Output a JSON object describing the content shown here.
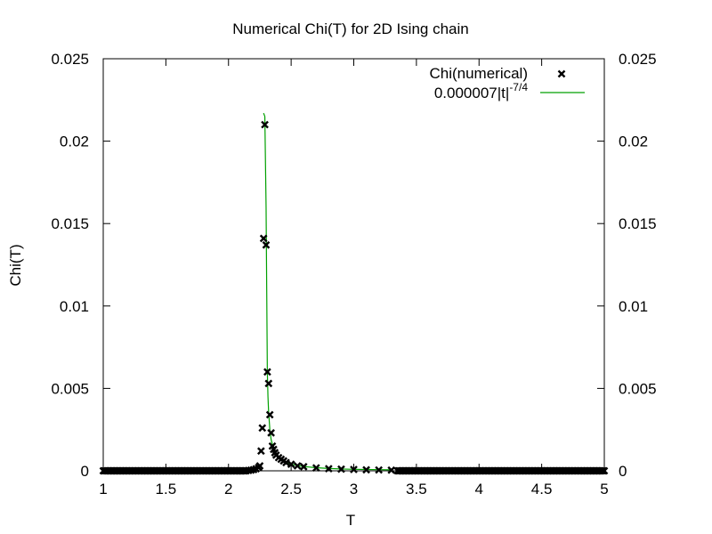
{
  "chart_data": {
    "type": "scatter",
    "title": "Numerical Chi(T) for 2D Ising chain",
    "xlabel": "T",
    "ylabel": "Chi(T)",
    "xlim": [
      1,
      5
    ],
    "ylim": [
      0,
      0.025
    ],
    "x_ticks": [
      "1",
      "1.5",
      "2",
      "2.5",
      "3",
      "3.5",
      "4",
      "4.5",
      "5"
    ],
    "y_ticks": [
      "0",
      "0.005",
      "0.01",
      "0.015",
      "0.02",
      "0.025"
    ],
    "y2_ticks": [
      "0",
      "0.005",
      "0.01",
      "0.015",
      "0.02",
      "0.025"
    ],
    "legend_position": "top-right",
    "grid": false,
    "series": [
      {
        "name": "Chi(numerical)",
        "kind": "points",
        "marker": "x",
        "color": "#000000",
        "x": [
          2.16,
          2.18,
          2.2,
          2.22,
          2.24,
          2.25,
          2.26,
          2.27,
          2.28,
          2.29,
          2.3,
          2.31,
          2.32,
          2.33,
          2.34,
          2.35,
          2.36,
          2.37,
          2.38,
          2.4,
          2.42,
          2.44,
          2.46,
          2.5,
          2.55,
          2.6,
          2.7,
          2.8,
          2.9,
          3.0,
          3.1,
          3.2,
          3.3
        ],
        "y": [
          2e-05,
          4e-05,
          7e-05,
          0.00012,
          0.0002,
          0.0003,
          0.0012,
          0.0026,
          0.0141,
          0.021,
          0.0137,
          0.006,
          0.0053,
          0.0034,
          0.0023,
          0.0015,
          0.0013,
          0.0011,
          0.00095,
          0.0008,
          0.0007,
          0.0006,
          0.0005,
          0.0004,
          0.0003,
          0.00025,
          0.00018,
          0.00013,
          0.0001,
          8e-05,
          6e-05,
          5e-05,
          4e-05
        ]
      },
      {
        "name": "0.000007|t|",
        "name_superscript": "-7/4",
        "kind": "line",
        "color": "#00a000",
        "x": [
          2.28,
          2.29,
          2.3,
          2.31,
          2.315,
          2.32,
          2.33,
          2.34,
          2.35,
          2.36,
          2.38,
          2.4,
          2.43,
          2.46,
          2.5,
          2.55,
          2.6,
          2.7,
          2.8,
          2.9,
          3.0,
          3.1,
          3.2,
          3.3
        ],
        "y": [
          0.0217,
          0.0215,
          0.016,
          0.006,
          0.0045,
          0.0036,
          0.0025,
          0.0019,
          0.0016,
          0.0013,
          0.001,
          0.0008,
          0.0006,
          0.0005,
          0.0004,
          0.00032,
          0.00026,
          0.00019,
          0.00014,
          0.00011,
          9e-05,
          8e-05,
          7e-05,
          6e-05
        ]
      }
    ],
    "baseline_points": {
      "x_start": 1.0,
      "x_end": 5.0,
      "step": 0.01,
      "skip_from": 2.15,
      "skip_to": 3.35,
      "y": 0
    }
  }
}
